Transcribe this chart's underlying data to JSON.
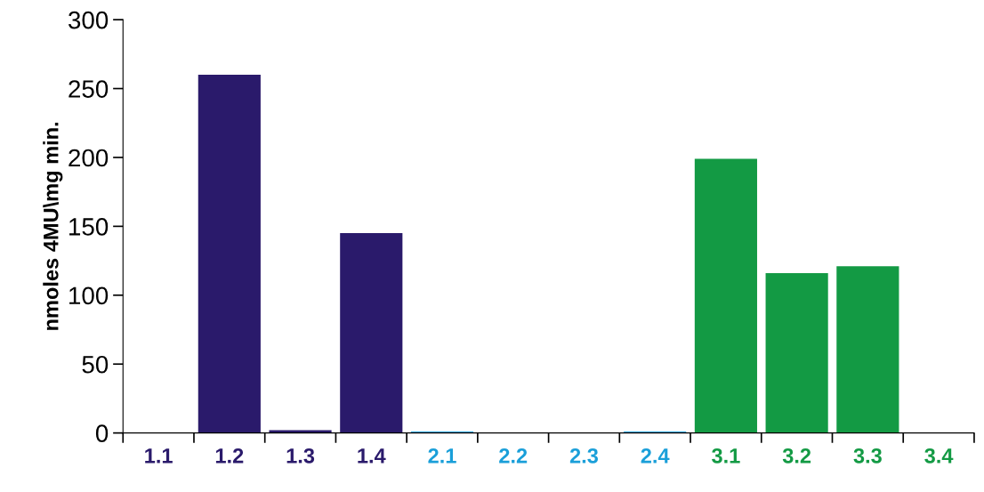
{
  "chart_data": {
    "type": "bar",
    "ylabel": "nmoles 4MU\\mg min.",
    "categories": [
      "1.1",
      "1.2",
      "1.3",
      "1.4",
      "2.1",
      "2.2",
      "2.3",
      "2.4",
      "3.1",
      "3.2",
      "3.3",
      "3.4"
    ],
    "values": [
      0,
      260,
      2,
      145,
      1,
      0,
      0,
      1,
      199,
      116,
      121,
      0
    ],
    "colors": [
      "#2a1a6b",
      "#2a1a6b",
      "#2a1a6b",
      "#2a1a6b",
      "#1a9fd9",
      "#1a9fd9",
      "#1a9fd9",
      "#1a9fd9",
      "#139a44",
      "#139a44",
      "#139a44",
      "#139a44"
    ],
    "ylim": [
      0,
      300
    ],
    "yticks": [
      0,
      50,
      100,
      150,
      200,
      250,
      300
    ],
    "grid": false,
    "legend": false
  }
}
